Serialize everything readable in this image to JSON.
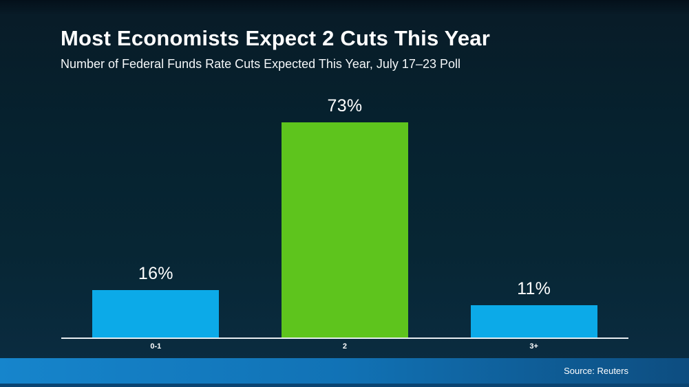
{
  "header": {
    "title": "Most Economists Expect 2 Cuts This Year",
    "subtitle": "Number of Federal Funds Rate Cuts Expected This Year, July 17–23 Poll"
  },
  "footer": {
    "source": "Source: Reuters"
  },
  "colors": {
    "background_top": "#04101a",
    "background_bottom": "#0b2d43",
    "bar_blue": "#0caae8",
    "bar_green_highlight": "#5ec41d",
    "axis_line": "#e9eef2",
    "footer_gradient_left": "#1685cc",
    "footer_gradient_right": "#0d4d80",
    "footer_bottom_strip": "#0a4472",
    "text": "#ffffff"
  },
  "chart_data": {
    "type": "bar",
    "title": "Most Economists Expect 2 Cuts This Year",
    "subtitle": "Number of Federal Funds Rate Cuts Expected This Year, July 17–23 Poll",
    "categories": [
      "0-1",
      "2",
      "3+"
    ],
    "values": [
      16,
      73,
      11
    ],
    "value_labels": [
      "16%",
      "73%",
      "11%"
    ],
    "bar_colors": [
      "#0caae8",
      "#5ec41d",
      "#0caae8"
    ],
    "highlighted_category": "2",
    "xlabel": "",
    "ylabel": "",
    "ylim": [
      0,
      80
    ],
    "grid": false,
    "legend": false,
    "y_axis_visible": false,
    "source": "Source: Reuters"
  }
}
